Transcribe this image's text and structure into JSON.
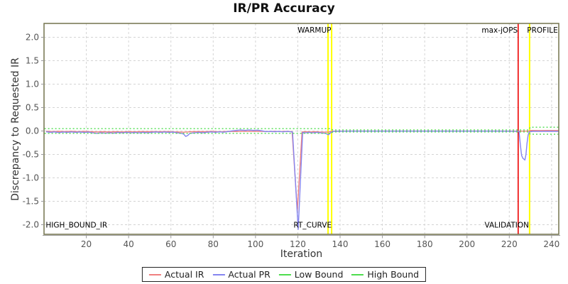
{
  "chart_data": {
    "type": "line",
    "title": "IR/PR Accuracy",
    "xlabel": "Iteration",
    "ylabel": "Discrepancy to Requested IR",
    "xlim": [
      0,
      243.4
    ],
    "ylim": [
      -2.205,
      2.295
    ],
    "grid": true,
    "legend_position": "bottom",
    "xticks": [
      20,
      40,
      60,
      80,
      100,
      120,
      140,
      160,
      180,
      200,
      220,
      240
    ],
    "yticks": [
      2.0,
      1.5,
      1.0,
      0.5,
      0.0,
      -0.5,
      -1.0,
      -1.5,
      -2.0
    ],
    "colors": {
      "actual_ir": "#f08080",
      "actual_pr": "#8585f0",
      "bounds": "#4ddd4d",
      "marker_yellow": "#ffff00",
      "marker_red": "#ee0000",
      "plot_border": "#73734d",
      "grid_line": "#d4d4d4",
      "axis_line": "#999999"
    },
    "series": [
      {
        "name": "Actual IR",
        "color": "#f08080",
        "dash": "",
        "points": [
          [
            1,
            -0.005
          ],
          [
            4,
            -0.012
          ],
          [
            7,
            -0.008
          ],
          [
            10,
            -0.012
          ],
          [
            13,
            -0.008
          ],
          [
            16,
            -0.014
          ],
          [
            19,
            -0.01
          ],
          [
            22,
            -0.016
          ],
          [
            25,
            -0.02
          ],
          [
            28,
            -0.016
          ],
          [
            31,
            -0.02
          ],
          [
            34,
            -0.015
          ],
          [
            37,
            -0.02
          ],
          [
            40,
            -0.014
          ],
          [
            43,
            -0.018
          ],
          [
            46,
            -0.012
          ],
          [
            49,
            -0.016
          ],
          [
            52,
            -0.012
          ],
          [
            55,
            -0.016
          ],
          [
            58,
            -0.012
          ],
          [
            61,
            -0.018
          ],
          [
            64,
            -0.022
          ],
          [
            66,
            -0.026
          ],
          [
            68,
            -0.02
          ],
          [
            70,
            -0.016
          ],
          [
            73,
            -0.012
          ],
          [
            76,
            -0.016
          ],
          [
            79,
            -0.01
          ],
          [
            82,
            -0.014
          ],
          [
            85,
            -0.012
          ],
          [
            88,
            -0.008
          ],
          [
            91,
            -0.012
          ],
          [
            94,
            -0.006
          ],
          [
            97,
            -0.01
          ],
          [
            100,
            -0.006
          ],
          [
            103,
            -0.01
          ],
          [
            106,
            -0.012
          ],
          [
            109,
            -0.008
          ],
          [
            112,
            -0.012
          ],
          [
            115,
            -0.006
          ],
          [
            117.3,
            -0.015
          ],
          [
            119.8,
            -1.7
          ],
          [
            122,
            -0.02
          ],
          [
            124,
            -0.014
          ],
          [
            126,
            -0.02
          ],
          [
            128,
            -0.014
          ],
          [
            130,
            -0.02
          ],
          [
            132,
            -0.022
          ],
          [
            134,
            -0.026
          ],
          [
            135.5,
            -0.015
          ],
          [
            136.5,
            -0.004
          ],
          [
            145,
            -0.002
          ],
          [
            160,
            -0.002
          ],
          [
            180,
            -0.002
          ],
          [
            200,
            -0.002
          ],
          [
            215,
            -0.002
          ],
          [
            224,
            -0.004
          ],
          [
            227,
            -0.004
          ],
          [
            229.4,
            -0.002
          ],
          [
            230,
            0.012
          ],
          [
            234,
            0.01
          ],
          [
            238,
            0.012
          ],
          [
            243.2,
            0.01
          ]
        ]
      },
      {
        "name": "Actual PR",
        "color": "#8585f0",
        "dash": "",
        "points": [
          [
            1,
            -0.015
          ],
          [
            3,
            -0.03
          ],
          [
            5,
            -0.02
          ],
          [
            7,
            -0.035
          ],
          [
            9,
            -0.022
          ],
          [
            11,
            -0.03
          ],
          [
            13,
            -0.02
          ],
          [
            15,
            -0.03
          ],
          [
            17,
            -0.022
          ],
          [
            19,
            -0.032
          ],
          [
            21,
            -0.025
          ],
          [
            23,
            -0.04
          ],
          [
            25,
            -0.05
          ],
          [
            27,
            -0.04
          ],
          [
            29,
            -0.048
          ],
          [
            31,
            -0.04
          ],
          [
            33,
            -0.046
          ],
          [
            35,
            -0.032
          ],
          [
            37,
            -0.04
          ],
          [
            39,
            -0.03
          ],
          [
            41,
            -0.04
          ],
          [
            43,
            -0.032
          ],
          [
            45,
            -0.04
          ],
          [
            47,
            -0.03
          ],
          [
            49,
            -0.038
          ],
          [
            51,
            -0.028
          ],
          [
            53,
            -0.022
          ],
          [
            55,
            -0.03
          ],
          [
            57,
            -0.022
          ],
          [
            59,
            -0.03
          ],
          [
            61,
            -0.024
          ],
          [
            63,
            -0.04
          ],
          [
            65,
            -0.05
          ],
          [
            66,
            -0.065
          ],
          [
            67,
            -0.115
          ],
          [
            68,
            -0.095
          ],
          [
            69,
            -0.05
          ],
          [
            71,
            -0.04
          ],
          [
            73,
            -0.03
          ],
          [
            75,
            -0.038
          ],
          [
            77,
            -0.028
          ],
          [
            79,
            -0.02
          ],
          [
            81,
            -0.028
          ],
          [
            83,
            -0.018
          ],
          [
            85,
            -0.026
          ],
          [
            87,
            -0.012
          ],
          [
            89,
            0.002
          ],
          [
            91,
            0.012
          ],
          [
            93,
            0.02
          ],
          [
            95,
            0.012
          ],
          [
            97,
            0.02
          ],
          [
            99,
            0.012
          ],
          [
            101,
            0.018
          ],
          [
            103,
            0.004
          ],
          [
            105,
            -0.014
          ],
          [
            107,
            -0.008
          ],
          [
            109,
            -0.016
          ],
          [
            111,
            -0.01
          ],
          [
            113,
            -0.018
          ],
          [
            115,
            -0.01
          ],
          [
            117.5,
            -0.02
          ],
          [
            120.2,
            -2.1
          ],
          [
            122.3,
            -0.03
          ],
          [
            123.5,
            -0.042
          ],
          [
            125,
            -0.03
          ],
          [
            127,
            -0.04
          ],
          [
            129,
            -0.03
          ],
          [
            131,
            -0.042
          ],
          [
            133,
            -0.05
          ],
          [
            134.5,
            -0.08
          ],
          [
            135.5,
            -0.04
          ],
          [
            136.6,
            -0.008
          ],
          [
            145,
            -0.004
          ],
          [
            160,
            -0.004
          ],
          [
            180,
            -0.004
          ],
          [
            200,
            -0.004
          ],
          [
            215,
            -0.004
          ],
          [
            222,
            -0.006
          ],
          [
            224.6,
            -0.01
          ],
          [
            225.2,
            -0.28
          ],
          [
            225.8,
            -0.52
          ],
          [
            226.4,
            -0.58
          ],
          [
            227.4,
            -0.62
          ],
          [
            227.9,
            -0.5
          ],
          [
            228.4,
            -0.26
          ],
          [
            228.9,
            -0.09
          ],
          [
            229.4,
            -0.02
          ],
          [
            231,
            -0.008
          ],
          [
            235,
            -0.01
          ],
          [
            239,
            -0.008
          ],
          [
            243.2,
            -0.01
          ]
        ]
      },
      {
        "name": "Low Bound",
        "color": "#4ddd4d",
        "dash": "2,3",
        "points": [
          [
            0.2,
            -0.05
          ],
          [
            135.6,
            -0.05
          ],
          [
            136.6,
            -0.02
          ],
          [
            229.3,
            -0.02
          ],
          [
            229.9,
            -0.07
          ],
          [
            243.2,
            -0.07
          ]
        ]
      },
      {
        "name": "High Bound",
        "color": "#4ddd4d",
        "dash": "2,3",
        "points": [
          [
            0.2,
            0.05
          ],
          [
            135.6,
            0.05
          ],
          [
            136.6,
            0.02
          ],
          [
            229.3,
            0.02
          ],
          [
            229.9,
            0.08
          ],
          [
            243.2,
            0.08
          ]
        ]
      }
    ],
    "markers": [
      {
        "x": 134.3,
        "color": "#ffff00",
        "width": 2
      },
      {
        "x": 136.0,
        "color": "#ffff00",
        "width": 2
      },
      {
        "x": 224.2,
        "color": "#ee0000",
        "width": 1.6
      },
      {
        "x": 229.6,
        "color": "#ffff00",
        "width": 2
      }
    ],
    "annotations": [
      {
        "text": "WARMUP",
        "x": 135.8,
        "y": 2.1,
        "anchor": "end"
      },
      {
        "text": "max-jOPS",
        "x": 224.0,
        "y": 2.1,
        "anchor": "end"
      },
      {
        "text": "PROFILE",
        "x": 243.0,
        "y": 2.1,
        "anchor": "end"
      },
      {
        "text": "HIGH_BOUND_IR",
        "x": 0.8,
        "y": -2.06,
        "anchor": "start"
      },
      {
        "text": "RT_CURVE",
        "x": 136.0,
        "y": -2.06,
        "anchor": "end"
      },
      {
        "text": "VALIDATION",
        "x": 229.3,
        "y": -2.06,
        "anchor": "end"
      }
    ]
  }
}
